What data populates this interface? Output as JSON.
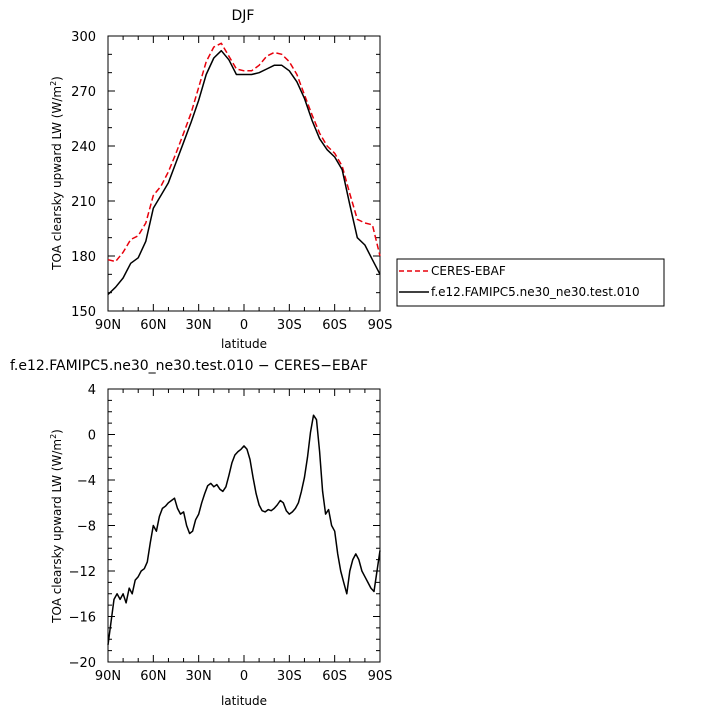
{
  "chart_data": [
    {
      "type": "line",
      "title": "DJF",
      "xlabel": "latitude",
      "ylabel": "TOA clearsky upward LW (W/m²)",
      "ylabel_parts": {
        "main": "TOA clearsky upward LW (W/m",
        "sup": "2",
        "end": ")"
      },
      "xlim": [
        90,
        -90
      ],
      "ylim": [
        150,
        300
      ],
      "xticks": [
        90,
        60,
        30,
        0,
        -30,
        -60,
        -90
      ],
      "xtick_labels": [
        "90N",
        "60N",
        "30N",
        "0",
        "30S",
        "60S",
        "90S"
      ],
      "yticks": [
        150,
        180,
        210,
        240,
        270,
        300
      ],
      "ytick_labels": [
        "150",
        "180",
        "210",
        "240",
        "270",
        "300"
      ],
      "legend_position": "right, outside plot",
      "series": [
        {
          "name": "CERES-EBAF",
          "color": "#e8000b",
          "dash": "dashed",
          "x": [
            90,
            85,
            80,
            75,
            70,
            65,
            60,
            55,
            50,
            45,
            40,
            35,
            30,
            25,
            20,
            15,
            10,
            5,
            0,
            -5,
            -10,
            -15,
            -20,
            -25,
            -30,
            -35,
            -40,
            -45,
            -50,
            -55,
            -60,
            -65,
            -70,
            -75,
            -80,
            -85,
            -90
          ],
          "y": [
            178,
            177,
            182,
            189,
            191,
            198,
            213,
            218,
            226,
            236,
            247,
            258,
            272,
            286,
            294,
            296,
            289,
            282,
            281,
            281,
            284,
            289,
            291,
            290,
            286,
            279,
            268,
            257,
            247,
            240,
            236,
            229,
            214,
            200,
            198,
            197,
            180
          ]
        },
        {
          "name": "f.e12.FAMIPC5.ne30_ne30.test.010",
          "color": "#000000",
          "dash": "solid",
          "x": [
            90,
            85,
            80,
            75,
            70,
            65,
            60,
            55,
            50,
            45,
            40,
            35,
            30,
            25,
            20,
            15,
            10,
            5,
            0,
            -5,
            -10,
            -15,
            -20,
            -25,
            -30,
            -35,
            -40,
            -45,
            -50,
            -55,
            -60,
            -65,
            -70,
            -75,
            -80,
            -85,
            -90
          ],
          "y": [
            159,
            163,
            168,
            176,
            179,
            188,
            206,
            213,
            220,
            231,
            242,
            253,
            265,
            279,
            288,
            292,
            287,
            279,
            279,
            279,
            280,
            282,
            284,
            284,
            281,
            275,
            266,
            254,
            244,
            238,
            234,
            227,
            208,
            190,
            186,
            178,
            170
          ]
        }
      ]
    },
    {
      "type": "line",
      "title": "f.e12.FAMIPC5.ne30_ne30.test.010 − CERES−EBAF",
      "xlabel": "latitude",
      "ylabel": "TOA clearsky upward LW (W/m²)",
      "ylabel_parts": {
        "main": "TOA clearsky upward LW (W/m",
        "sup": "2",
        "end": ")"
      },
      "xlim": [
        90,
        -90
      ],
      "ylim": [
        -20,
        4
      ],
      "xticks": [
        90,
        60,
        30,
        0,
        -30,
        -60,
        -90
      ],
      "xtick_labels": [
        "90N",
        "60N",
        "30N",
        "0",
        "30S",
        "60S",
        "90S"
      ],
      "yticks": [
        -20,
        -16,
        -12,
        -8,
        -4,
        0,
        4
      ],
      "ytick_labels": [
        "−20",
        "−16",
        "−12",
        "−8",
        "−4",
        "0",
        "4"
      ],
      "series": [
        {
          "name": "",
          "color": "#000000",
          "dash": "solid",
          "x": [
            90,
            88,
            86,
            84,
            82,
            80,
            78,
            76,
            74,
            72,
            70,
            68,
            66,
            64,
            62,
            60,
            58,
            56,
            54,
            52,
            50,
            48,
            46,
            44,
            42,
            40,
            38,
            36,
            34,
            32,
            30,
            28,
            26,
            24,
            22,
            20,
            18,
            16,
            14,
            12,
            10,
            8,
            6,
            4,
            2,
            0,
            -2,
            -4,
            -6,
            -8,
            -10,
            -12,
            -14,
            -16,
            -18,
            -20,
            -22,
            -24,
            -26,
            -28,
            -30,
            -32,
            -34,
            -36,
            -38,
            -40,
            -42,
            -44,
            -46,
            -48,
            -50,
            -52,
            -54,
            -56,
            -58,
            -60,
            -62,
            -64,
            -66,
            -68,
            -70,
            -72,
            -74,
            -76,
            -78,
            -80,
            -82,
            -84,
            -86,
            -88,
            -90
          ],
          "y": [
            -18.5,
            -16.5,
            -14.5,
            -14.0,
            -14.5,
            -14.0,
            -14.8,
            -13.5,
            -14.0,
            -12.8,
            -12.5,
            -12.0,
            -11.8,
            -11.2,
            -9.5,
            -8.0,
            -8.5,
            -7.2,
            -6.5,
            -6.3,
            -6.0,
            -5.8,
            -5.6,
            -6.5,
            -7.0,
            -6.8,
            -8.0,
            -8.7,
            -8.5,
            -7.5,
            -7.0,
            -6.0,
            -5.2,
            -4.5,
            -4.3,
            -4.6,
            -4.4,
            -4.8,
            -5.0,
            -4.6,
            -3.6,
            -2.5,
            -1.8,
            -1.5,
            -1.3,
            -1.0,
            -1.3,
            -2.2,
            -3.8,
            -5.2,
            -6.2,
            -6.7,
            -6.8,
            -6.6,
            -6.7,
            -6.5,
            -6.2,
            -5.8,
            -6.0,
            -6.7,
            -7.0,
            -6.8,
            -6.5,
            -6.0,
            -5.0,
            -3.8,
            -2.0,
            0.2,
            1.7,
            1.3,
            -1.5,
            -5.0,
            -7.0,
            -6.6,
            -8.0,
            -8.5,
            -10.5,
            -12.0,
            -13.0,
            -14.0,
            -12.0,
            -11.0,
            -10.5,
            -11.0,
            -12.0,
            -12.5,
            -13.0,
            -13.5,
            -13.8,
            -12.0,
            -10.2
          ]
        }
      ]
    }
  ],
  "legend": {
    "items": [
      {
        "label": "CERES-EBAF",
        "color": "#e8000b",
        "dash": "dashed"
      },
      {
        "label": "f.e12.FAMIPC5.ne30_ne30.test.010",
        "color": "#000000",
        "dash": "solid"
      }
    ]
  }
}
